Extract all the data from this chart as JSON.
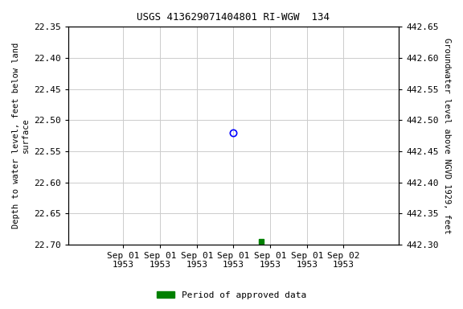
{
  "title": "USGS 413629071404801 RI-WGW  134",
  "left_ylabel": "Depth to water level, feet below land\nsurface",
  "right_ylabel": "Groundwater level above NGVD 1929, feet",
  "ylim_left": [
    22.7,
    22.35
  ],
  "ylim_right": [
    442.3,
    442.65
  ],
  "yticks_left": [
    22.35,
    22.4,
    22.45,
    22.5,
    22.55,
    22.6,
    22.65,
    22.7
  ],
  "yticks_right": [
    442.65,
    442.6,
    442.55,
    442.5,
    442.45,
    442.4,
    442.35,
    442.3
  ],
  "point_open_x_h": 12.0,
  "point_open_y": 22.52,
  "point_filled_x_h": 15.0,
  "point_filled_y": 22.695,
  "open_marker_color": "blue",
  "filled_marker_color": "green",
  "grid_color": "#cccccc",
  "bg_color": "white",
  "legend_label": "Period of approved data",
  "legend_color": "green",
  "title_fontsize": 9,
  "label_fontsize": 7.5,
  "tick_fontsize": 8,
  "xlim_start_h": -6.0,
  "xlim_end_h": 30.0,
  "xtick_hours": [
    0,
    4,
    8,
    12,
    16,
    20,
    24
  ],
  "xtick_labels": [
    "Sep 01\n1953",
    "Sep 01\n1953",
    "Sep 01\n1953",
    "Sep 01\n1953",
    "Sep 01\n1953",
    "Sep 01\n1953",
    "Sep 02\n1953"
  ]
}
